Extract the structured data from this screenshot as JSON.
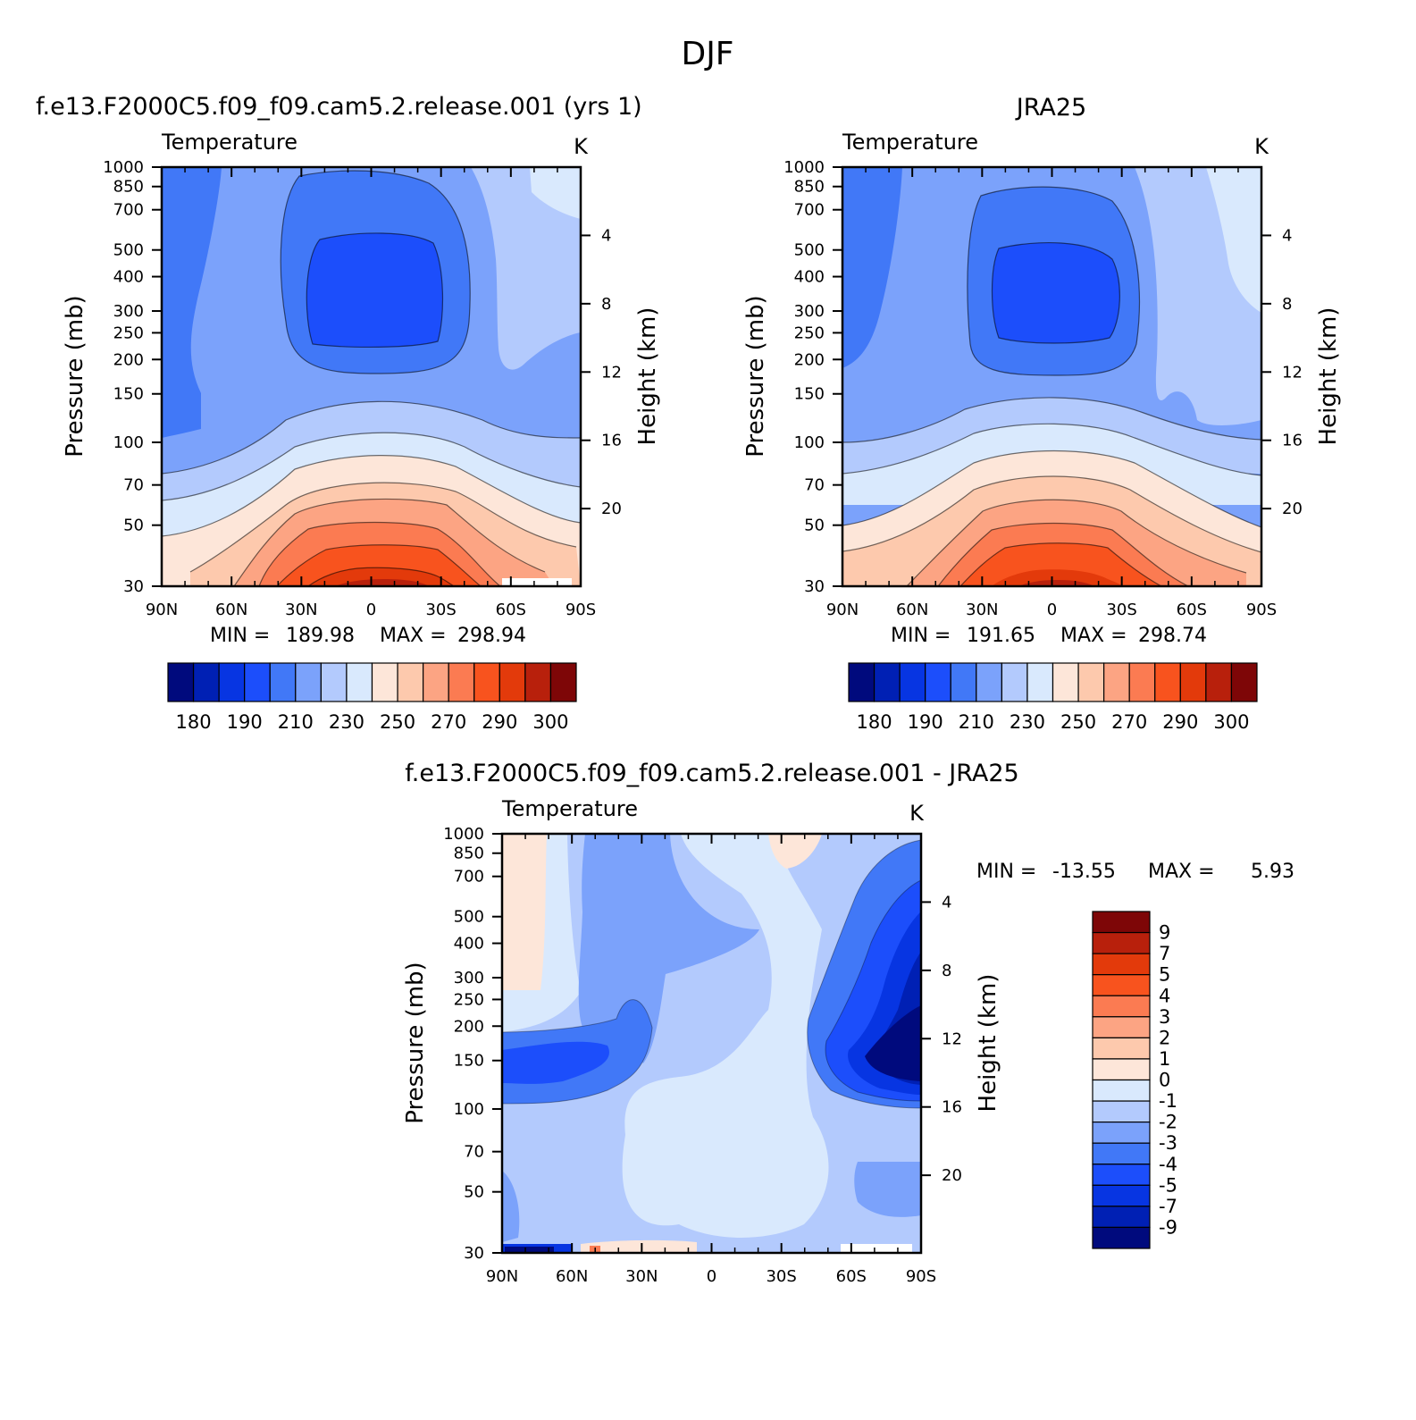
{
  "main_title": "DJF",
  "panels": {
    "model": {
      "title": "f.e13.F2000C5.f09_f09.cam5.2.release.001 (yrs 1)",
      "var": "Temperature",
      "units": "K",
      "ylabel": "Pressure (mb)",
      "y2label": "Height (km)",
      "min_label": "MIN =",
      "min_val": "189.98",
      "max_label": "MAX =",
      "max_val": "298.94"
    },
    "obs": {
      "title": "JRA25",
      "var": "Temperature",
      "units": "K",
      "ylabel": "Pressure (mb)",
      "y2label": "Height (km)",
      "min_label": "MIN =",
      "min_val": "191.65",
      "max_label": "MAX =",
      "max_val": "298.74"
    },
    "diff": {
      "title": "f.e13.F2000C5.f09_f09.cam5.2.release.001 - JRA25",
      "var": "Temperature",
      "units": "K",
      "ylabel": "Pressure (mb)",
      "y2label": "Height (km)",
      "min_label": "MIN =",
      "min_val": "-13.55",
      "max_label": "MAX =",
      "max_val": "5.93"
    }
  },
  "axes": {
    "x_ticks": [
      "90N",
      "60N",
      "30N",
      "0",
      "30S",
      "60S",
      "90S"
    ],
    "p_ticks": [
      "30",
      "50",
      "70",
      "100",
      "150",
      "200",
      "250",
      "300",
      "400",
      "500",
      "700",
      "850",
      "1000"
    ],
    "p_values": [
      30,
      50,
      70,
      100,
      150,
      200,
      250,
      300,
      400,
      500,
      700,
      850,
      1000
    ],
    "h_ticks": [
      "20",
      "16",
      "12",
      "8",
      "4"
    ],
    "h_values": [
      20,
      16,
      12,
      8,
      4
    ]
  },
  "colors": {
    "abs": [
      "#000a7d",
      "#0020b4",
      "#0735e2",
      "#1c4efb",
      "#4178f7",
      "#7ba2fb",
      "#b3cafd",
      "#d9e9fd",
      "#fde6d9",
      "#fdc9ad",
      "#fca483",
      "#fb7b52",
      "#f8531e",
      "#e33a0b",
      "#b8200c",
      "#7e0607"
    ],
    "diff": [
      "#000a7d",
      "#0020b4",
      "#0735e2",
      "#1c4efb",
      "#4178f7",
      "#7ba2fb",
      "#b3cafd",
      "#d9e9fd",
      "#fde6d9",
      "#fdc9ad",
      "#fca483",
      "#fb7b52",
      "#f8531e",
      "#e33a0b",
      "#b8200c",
      "#7e0607"
    ]
  },
  "chart_data": [
    {
      "type": "contour",
      "panel": "model",
      "title": "f.e13.F2000C5.f09_f09.cam5.2.release.001 (yrs 1)",
      "variable": "Temperature",
      "units": "K",
      "xlabel": "",
      "ylabel": "Pressure (mb)",
      "y2label": "Height (km)",
      "x": [
        "90N",
        "60N",
        "30N",
        "0",
        "30S",
        "60S",
        "90S"
      ],
      "pressure_levels": [
        30,
        50,
        70,
        100,
        150,
        200,
        250,
        300,
        400,
        500,
        700,
        850,
        1000
      ],
      "contour_levels": [
        180,
        185,
        190,
        200,
        210,
        220,
        230,
        240,
        250,
        260,
        270,
        280,
        290,
        295,
        300
      ],
      "colorbar_labels": [
        "180",
        "190",
        "210",
        "230",
        "250",
        "270",
        "290",
        "300"
      ],
      "min": 189.98,
      "max": 298.94
    },
    {
      "type": "contour",
      "panel": "obs",
      "title": "JRA25",
      "variable": "Temperature",
      "units": "K",
      "xlabel": "",
      "ylabel": "Pressure (mb)",
      "y2label": "Height (km)",
      "x": [
        "90N",
        "60N",
        "30N",
        "0",
        "30S",
        "60S",
        "90S"
      ],
      "pressure_levels": [
        30,
        50,
        70,
        100,
        150,
        200,
        250,
        300,
        400,
        500,
        700,
        850,
        1000
      ],
      "contour_levels": [
        180,
        185,
        190,
        200,
        210,
        220,
        230,
        240,
        250,
        260,
        270,
        280,
        290,
        295,
        300
      ],
      "colorbar_labels": [
        "180",
        "190",
        "210",
        "230",
        "250",
        "270",
        "290",
        "300"
      ],
      "min": 191.65,
      "max": 298.74
    },
    {
      "type": "contour",
      "panel": "diff",
      "title": "f.e13.F2000C5.f09_f09.cam5.2.release.001 - JRA25",
      "variable": "Temperature",
      "units": "K",
      "xlabel": "",
      "ylabel": "Pressure (mb)",
      "y2label": "Height (km)",
      "x": [
        "90N",
        "60N",
        "30N",
        "0",
        "30S",
        "60S",
        "90S"
      ],
      "pressure_levels": [
        30,
        50,
        70,
        100,
        150,
        200,
        250,
        300,
        400,
        500,
        700,
        850,
        1000
      ],
      "contour_levels": [
        -9,
        -7,
        -5,
        -4,
        -3,
        -2,
        -1,
        0,
        1,
        2,
        3,
        4,
        5,
        7,
        9
      ],
      "colorbar_labels": [
        "9",
        "7",
        "5",
        "4",
        "3",
        "2",
        "1",
        "0",
        "-1",
        "-2",
        "-3",
        "-4",
        "-5",
        "-7",
        "-9"
      ],
      "min": -13.55,
      "max": 5.93
    }
  ]
}
